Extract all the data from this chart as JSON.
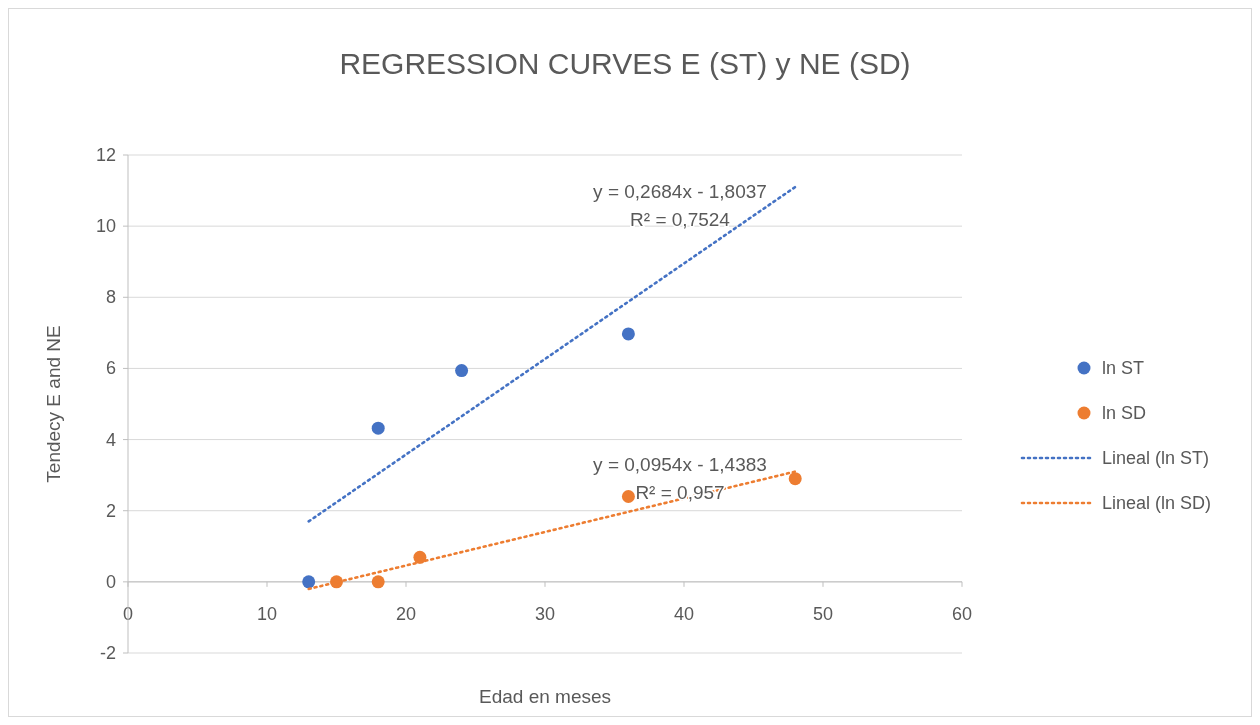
{
  "chart_data": {
    "type": "scatter",
    "title": "REGRESSION CURVES E (ST) y NE (SD)",
    "xlabel": "Edad en meses",
    "ylabel": "Tendecy E and NE",
    "xlim": [
      0,
      60
    ],
    "xticks": [
      0,
      10,
      20,
      30,
      40,
      50,
      60
    ],
    "ylim": [
      -2,
      12
    ],
    "yticks": [
      -2,
      0,
      2,
      4,
      6,
      8,
      10,
      12
    ],
    "grid": "y",
    "legend": "right",
    "series": [
      {
        "name": "ln ST",
        "type": "scatter",
        "marker": "circle",
        "color": "#4472c4",
        "x": [
          13,
          18,
          24,
          36
        ],
        "values": [
          0,
          4.32,
          5.94,
          6.97
        ]
      },
      {
        "name": "ln SD",
        "type": "scatter",
        "marker": "circle",
        "color": "#ed7d31",
        "x": [
          15,
          18,
          21,
          36,
          48
        ],
        "values": [
          0,
          0,
          0.69,
          2.4,
          2.9
        ]
      },
      {
        "name": "Lineal (ln ST)",
        "type": "line",
        "line_style": "dotted",
        "color": "#4472c4",
        "x": [
          13,
          48
        ],
        "values": [
          1.7,
          11.1
        ]
      },
      {
        "name": "Lineal (ln SD)",
        "type": "line",
        "line_style": "dotted",
        "color": "#ed7d31",
        "x": [
          13,
          48
        ],
        "values": [
          -0.2,
          3.1
        ]
      }
    ],
    "annotations": [
      "y = 0,2684x - 1,8037",
      "R² = 0,7524",
      "y = 0,0954x - 1,4383",
      "R² = 0,957"
    ]
  }
}
